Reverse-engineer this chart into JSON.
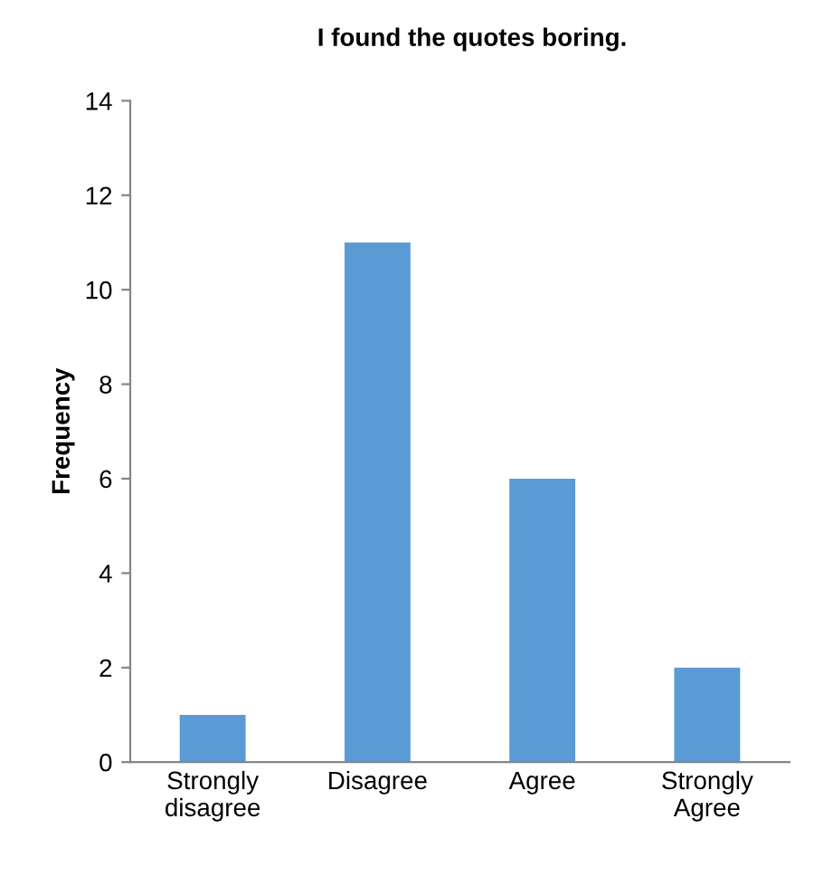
{
  "chart_data": {
    "type": "bar",
    "title": "I found the quotes boring.",
    "ylabel": "Frequency",
    "categories": [
      "Strongly\ndisagree",
      "Disagree",
      "Agree",
      "Strongly\nAgree"
    ],
    "values": [
      1,
      11,
      6,
      2
    ],
    "color": "#5b9bd5",
    "ylim": [
      0,
      14
    ],
    "yticks": [
      0,
      2,
      4,
      6,
      8,
      10,
      12,
      14
    ],
    "grid": false,
    "legend": false
  }
}
